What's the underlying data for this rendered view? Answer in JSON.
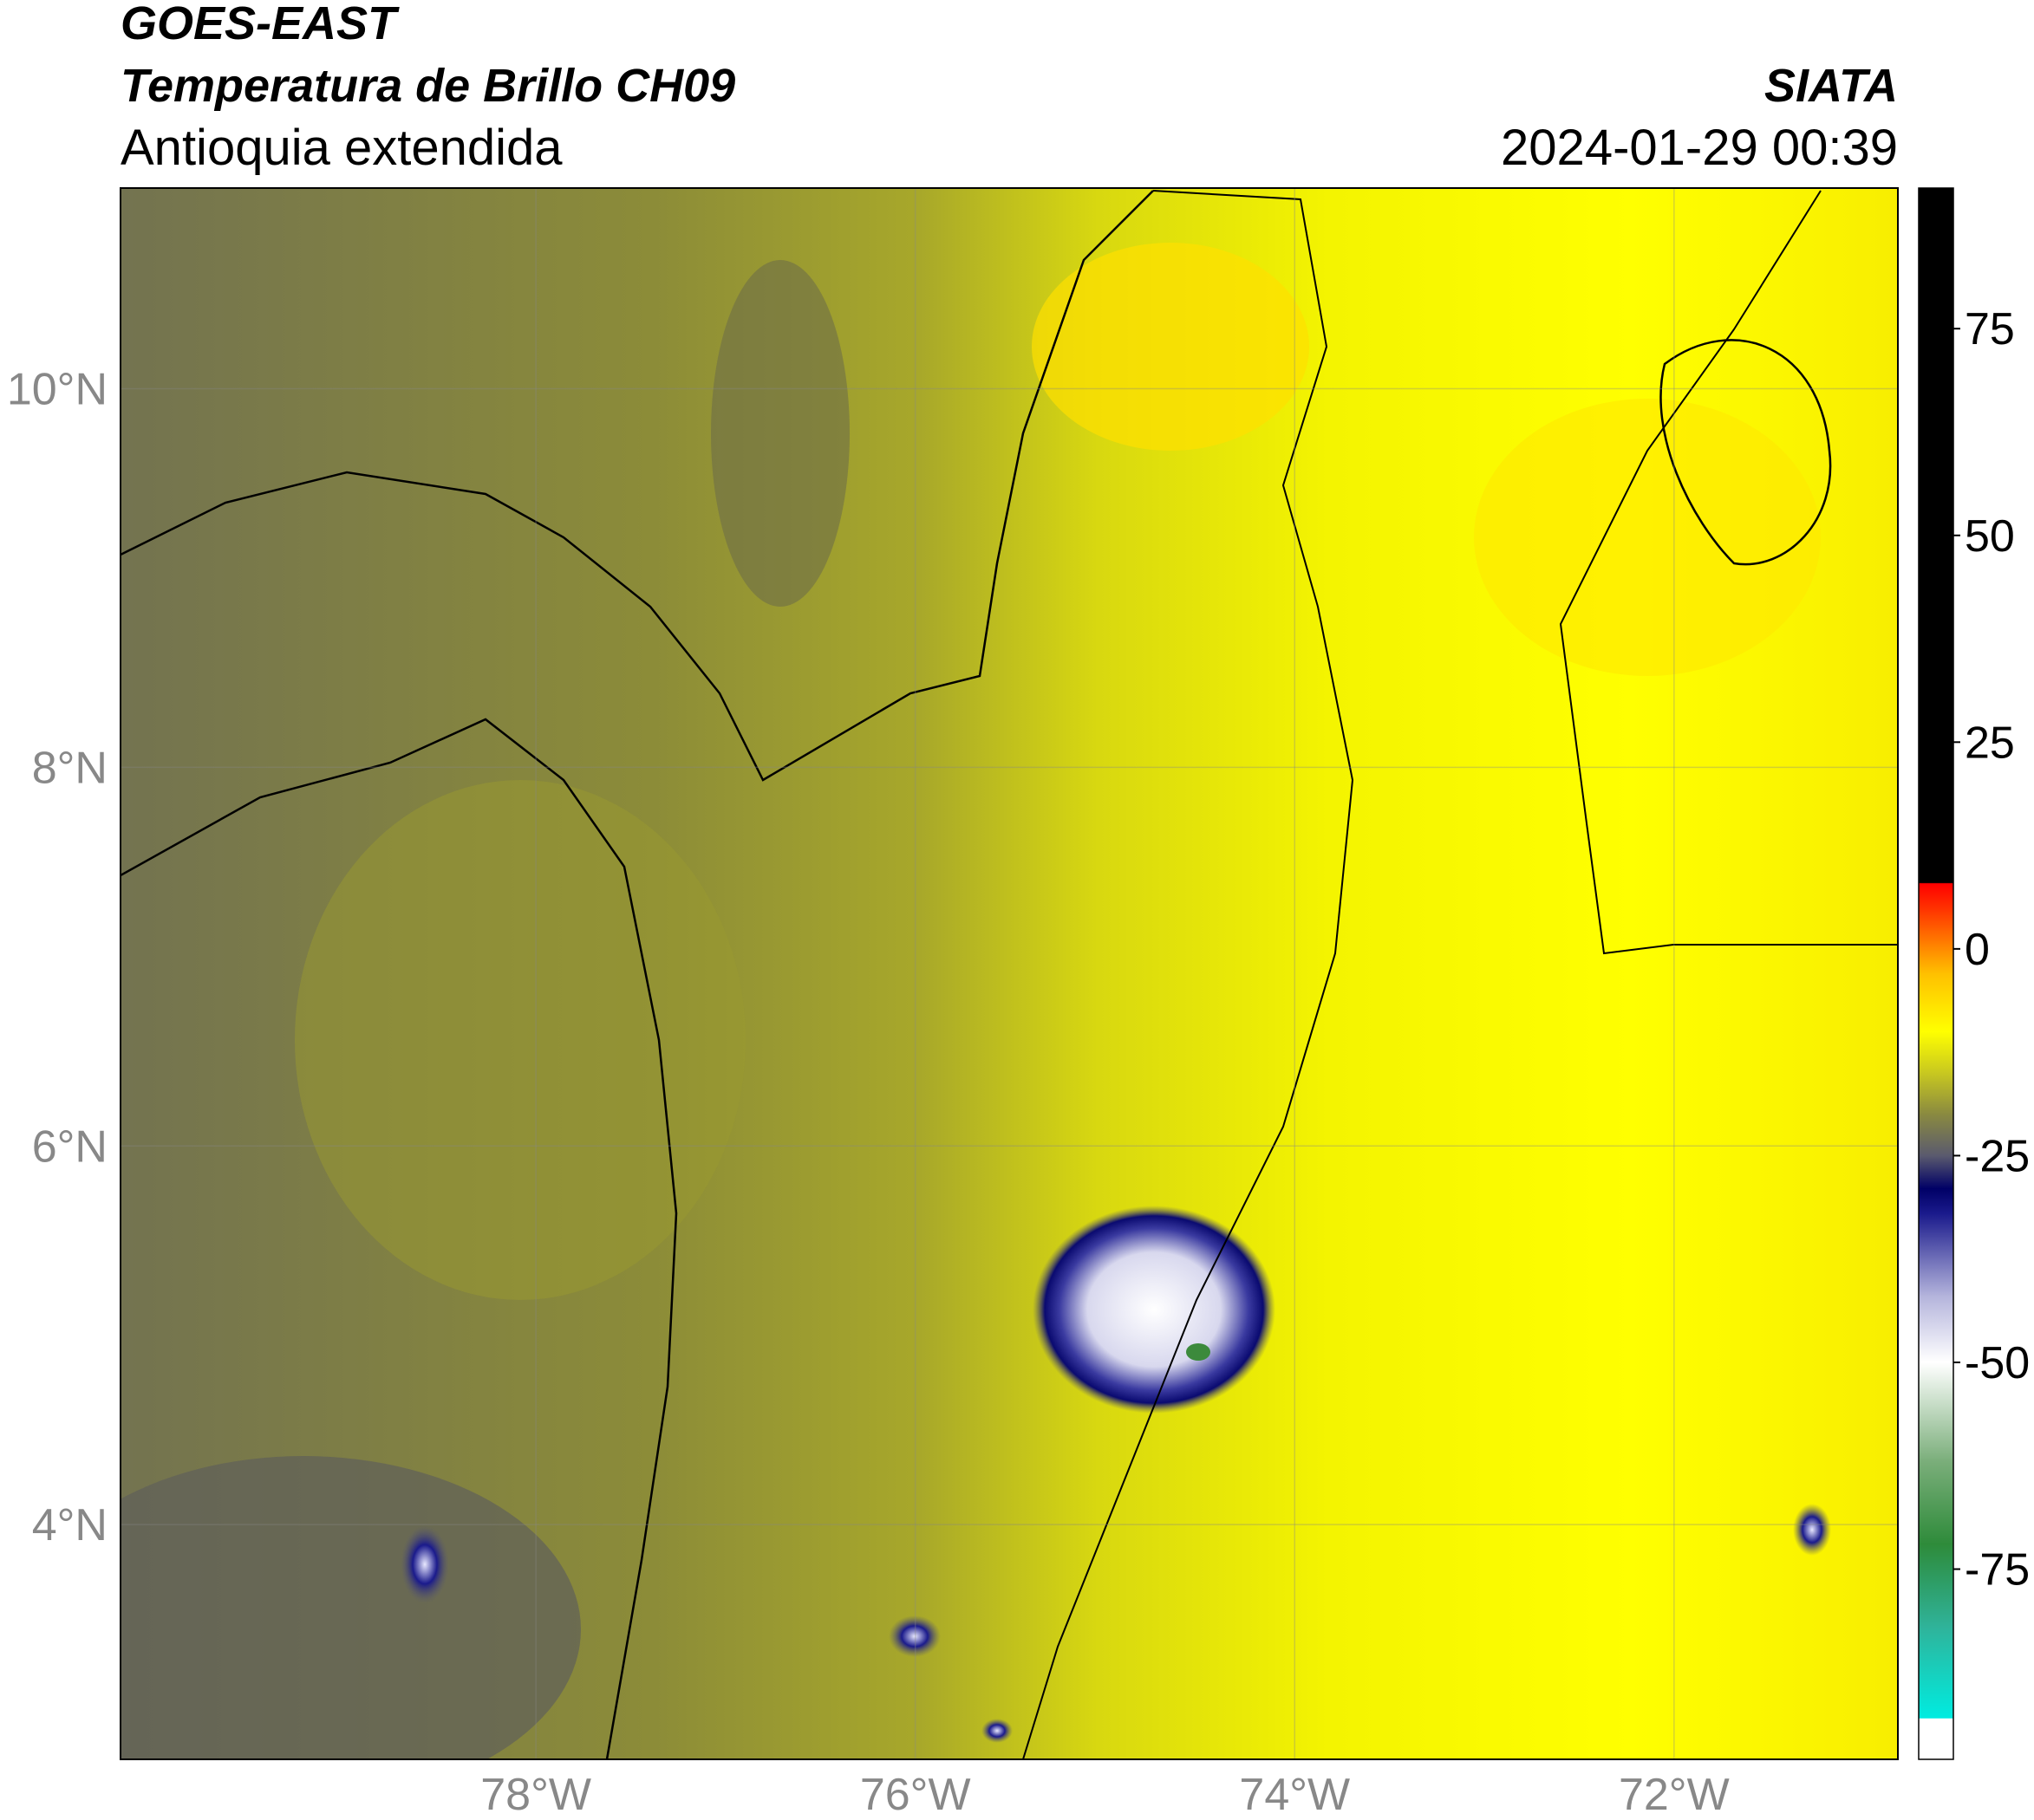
{
  "header": {
    "source": "GOES-EAST",
    "product": "Temperatura de Brillo CH09",
    "region": "Antioquia extendida",
    "agency": "SIATA",
    "datetime": "2024-01-29 00:39"
  },
  "chart_data": {
    "type": "map",
    "xlim": [
      -80.19,
      -70.82
    ],
    "ylim": [
      2.76,
      11.06
    ],
    "xticks": [
      {
        "value": -78,
        "label": "78°W"
      },
      {
        "value": -76,
        "label": "76°W"
      },
      {
        "value": -74,
        "label": "74°W"
      },
      {
        "value": -72,
        "label": "72°W"
      }
    ],
    "yticks": [
      {
        "value": 4,
        "label": "4°N"
      },
      {
        "value": 6,
        "label": "6°N"
      },
      {
        "value": 8,
        "label": "8°N"
      },
      {
        "value": 10,
        "label": "10°N"
      }
    ],
    "grid": true,
    "colorbar": {
      "lim": [
        -98,
        92
      ],
      "ticks": [
        -75,
        -50,
        -25,
        0,
        25,
        50,
        75
      ],
      "colormap": [
        {
          "value": -98,
          "color": "#ffffff"
        },
        {
          "value": -93.1,
          "color": "#ffffff"
        },
        {
          "value": -93,
          "color": "#00ece0"
        },
        {
          "value": -82,
          "color": "#2fb39a"
        },
        {
          "value": -72,
          "color": "#2e8b3a"
        },
        {
          "value": -62,
          "color": "#7aae7a"
        },
        {
          "value": -50,
          "color": "#ffffff"
        },
        {
          "value": -42,
          "color": "#b4b4dc"
        },
        {
          "value": -32,
          "color": "#1a1a8c"
        },
        {
          "value": -29,
          "color": "#000066"
        },
        {
          "value": -25,
          "color": "#5a5a6e"
        },
        {
          "value": -20,
          "color": "#8a8a40"
        },
        {
          "value": -15,
          "color": "#c8c820"
        },
        {
          "value": -10,
          "color": "#ffff00"
        },
        {
          "value": -3,
          "color": "#ffc000"
        },
        {
          "value": 5,
          "color": "#ff3000"
        },
        {
          "value": 7.9,
          "color": "#ff0000"
        },
        {
          "value": 8,
          "color": "#000000"
        },
        {
          "value": 92,
          "color": "#000000"
        }
      ]
    }
  }
}
